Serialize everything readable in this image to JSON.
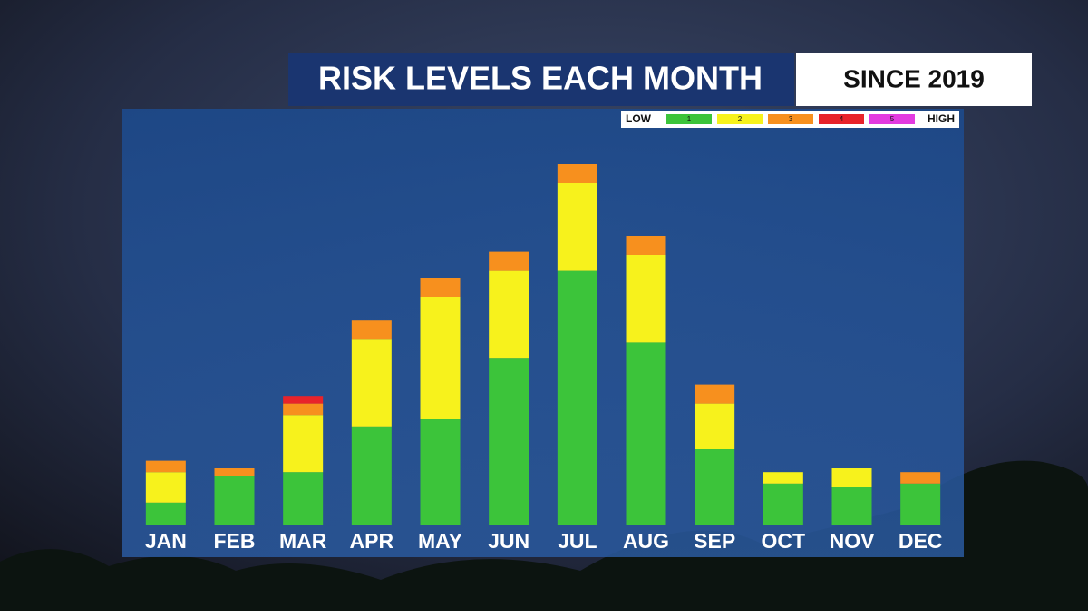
{
  "chart_data": {
    "type": "stacked_bar",
    "title": "RISK LEVELS EACH MONTH",
    "subtitle": "SINCE 2019",
    "legend_low": "LOW",
    "legend_high": "HIGH",
    "categories": [
      "JAN",
      "FEB",
      "MAR",
      "APR",
      "MAY",
      "JUN",
      "JUL",
      "AUG",
      "SEP",
      "OCT",
      "NOV",
      "DEC"
    ],
    "series": [
      {
        "name": "1",
        "color": "#3cc43a",
        "values": [
          6,
          13,
          14,
          26,
          28,
          44,
          67,
          48,
          20,
          11,
          10,
          11
        ]
      },
      {
        "name": "2",
        "color": "#f7f21c",
        "values": [
          8,
          0,
          15,
          23,
          32,
          23,
          23,
          23,
          12,
          3,
          5,
          0
        ]
      },
      {
        "name": "3",
        "color": "#f7901e",
        "values": [
          3,
          2,
          3,
          5,
          5,
          5,
          5,
          5,
          5,
          0,
          0,
          3
        ]
      },
      {
        "name": "4",
        "color": "#e8232a",
        "values": [
          0,
          0,
          2,
          0,
          0,
          0,
          0,
          0,
          0,
          0,
          0,
          0
        ]
      },
      {
        "name": "5",
        "color": "#e33be0",
        "values": [
          0,
          0,
          0,
          0,
          0,
          0,
          0,
          0,
          0,
          0,
          0,
          0
        ]
      }
    ],
    "ylim": [
      0,
      110
    ]
  }
}
